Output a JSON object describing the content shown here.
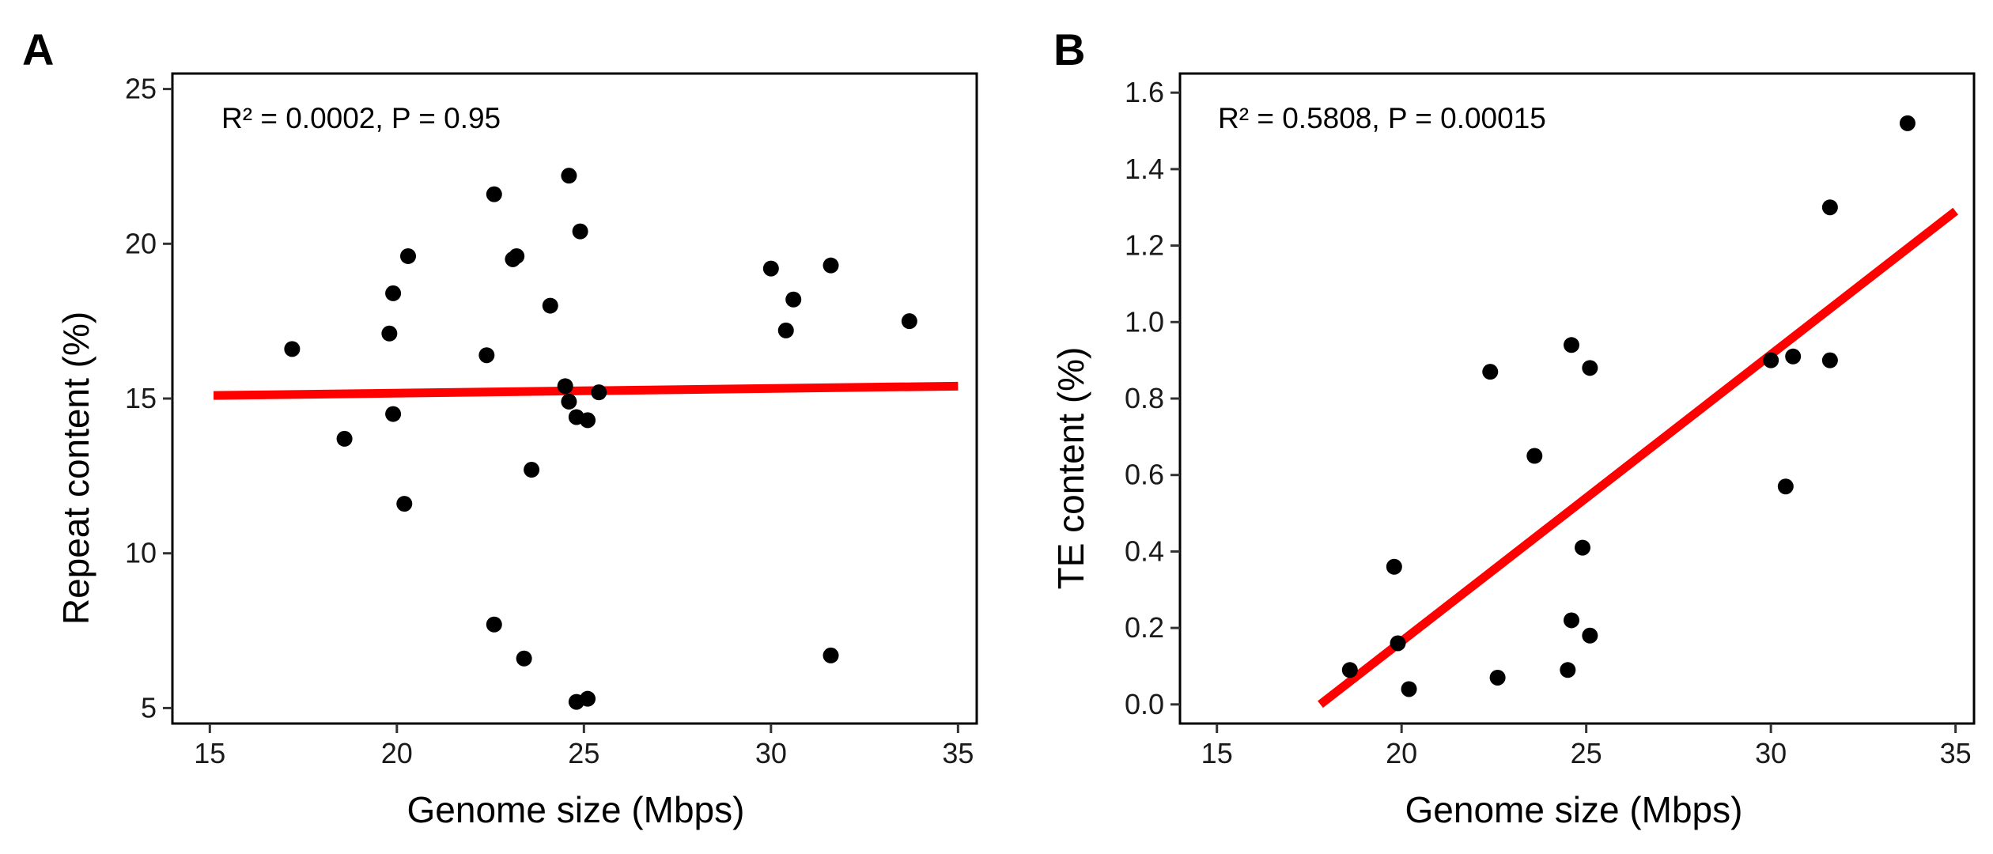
{
  "chart_data": [
    {
      "type": "scatter",
      "panel_label": "A",
      "annotation": "R² = 0.0002, P = 0.95",
      "xlabel": "Genome size (Mbps)",
      "ylabel": "Repeat content (%)",
      "xlim": [
        14,
        35.5
      ],
      "ylim": [
        4.5,
        25.5
      ],
      "xticks": [
        15,
        20,
        25,
        30,
        35
      ],
      "yticks": [
        5,
        10,
        15,
        20,
        25
      ],
      "point_color": "#000000",
      "line_color": "#ff0000",
      "grid": false,
      "points": [
        {
          "x": 17.2,
          "y": 16.6
        },
        {
          "x": 18.6,
          "y": 13.7
        },
        {
          "x": 19.8,
          "y": 17.1
        },
        {
          "x": 19.9,
          "y": 18.4
        },
        {
          "x": 19.9,
          "y": 14.5
        },
        {
          "x": 20.2,
          "y": 11.6
        },
        {
          "x": 20.3,
          "y": 19.6
        },
        {
          "x": 22.4,
          "y": 16.4
        },
        {
          "x": 22.6,
          "y": 21.6
        },
        {
          "x": 22.6,
          "y": 7.7
        },
        {
          "x": 23.1,
          "y": 19.5
        },
        {
          "x": 23.2,
          "y": 19.6
        },
        {
          "x": 23.4,
          "y": 6.6
        },
        {
          "x": 23.6,
          "y": 12.7
        },
        {
          "x": 24.1,
          "y": 18.0
        },
        {
          "x": 24.5,
          "y": 15.4
        },
        {
          "x": 24.6,
          "y": 22.2
        },
        {
          "x": 24.6,
          "y": 14.9
        },
        {
          "x": 24.8,
          "y": 14.4
        },
        {
          "x": 24.8,
          "y": 5.2
        },
        {
          "x": 24.9,
          "y": 20.4
        },
        {
          "x": 25.1,
          "y": 14.3
        },
        {
          "x": 25.1,
          "y": 5.3
        },
        {
          "x": 25.4,
          "y": 15.2
        },
        {
          "x": 30.0,
          "y": 19.2
        },
        {
          "x": 30.4,
          "y": 17.2
        },
        {
          "x": 30.6,
          "y": 18.2
        },
        {
          "x": 31.6,
          "y": 19.3
        },
        {
          "x": 31.6,
          "y": 6.7
        },
        {
          "x": 33.7,
          "y": 17.5
        }
      ],
      "fit_line": {
        "x": [
          15.1,
          35.0
        ],
        "y": [
          15.1,
          15.4
        ]
      }
    },
    {
      "type": "scatter",
      "panel_label": "B",
      "annotation": "R² = 0.5808, P = 0.00015",
      "xlabel": "Genome size (Mbps)",
      "ylabel": "TE content (%)",
      "xlim": [
        14,
        35.5
      ],
      "ylim": [
        -0.05,
        1.65
      ],
      "xticks": [
        15,
        20,
        25,
        30,
        35
      ],
      "yticks": [
        0.0,
        0.2,
        0.4,
        0.6,
        0.8,
        1.0,
        1.2,
        1.4,
        1.6
      ],
      "ytick_labels": [
        "0.0",
        "0.2",
        "0.4",
        "0.6",
        "0.8",
        "1.0",
        "1.2",
        "1.4",
        "1.6"
      ],
      "point_color": "#000000",
      "line_color": "#ff0000",
      "grid": false,
      "points": [
        {
          "x": 18.6,
          "y": 0.09
        },
        {
          "x": 19.8,
          "y": 0.36
        },
        {
          "x": 19.9,
          "y": 0.16
        },
        {
          "x": 20.2,
          "y": 0.04
        },
        {
          "x": 22.4,
          "y": 0.87
        },
        {
          "x": 22.6,
          "y": 0.07
        },
        {
          "x": 23.6,
          "y": 0.65
        },
        {
          "x": 24.5,
          "y": 0.09
        },
        {
          "x": 24.6,
          "y": 0.94
        },
        {
          "x": 24.6,
          "y": 0.22
        },
        {
          "x": 24.9,
          "y": 0.41
        },
        {
          "x": 25.1,
          "y": 0.88
        },
        {
          "x": 25.1,
          "y": 0.18
        },
        {
          "x": 30.0,
          "y": 0.9
        },
        {
          "x": 30.4,
          "y": 0.57
        },
        {
          "x": 30.6,
          "y": 0.91
        },
        {
          "x": 31.6,
          "y": 0.9
        },
        {
          "x": 31.6,
          "y": 1.3
        },
        {
          "x": 33.7,
          "y": 1.52
        }
      ],
      "fit_line": {
        "x": [
          17.8,
          35.0
        ],
        "y": [
          0.0,
          1.29
        ]
      }
    }
  ]
}
